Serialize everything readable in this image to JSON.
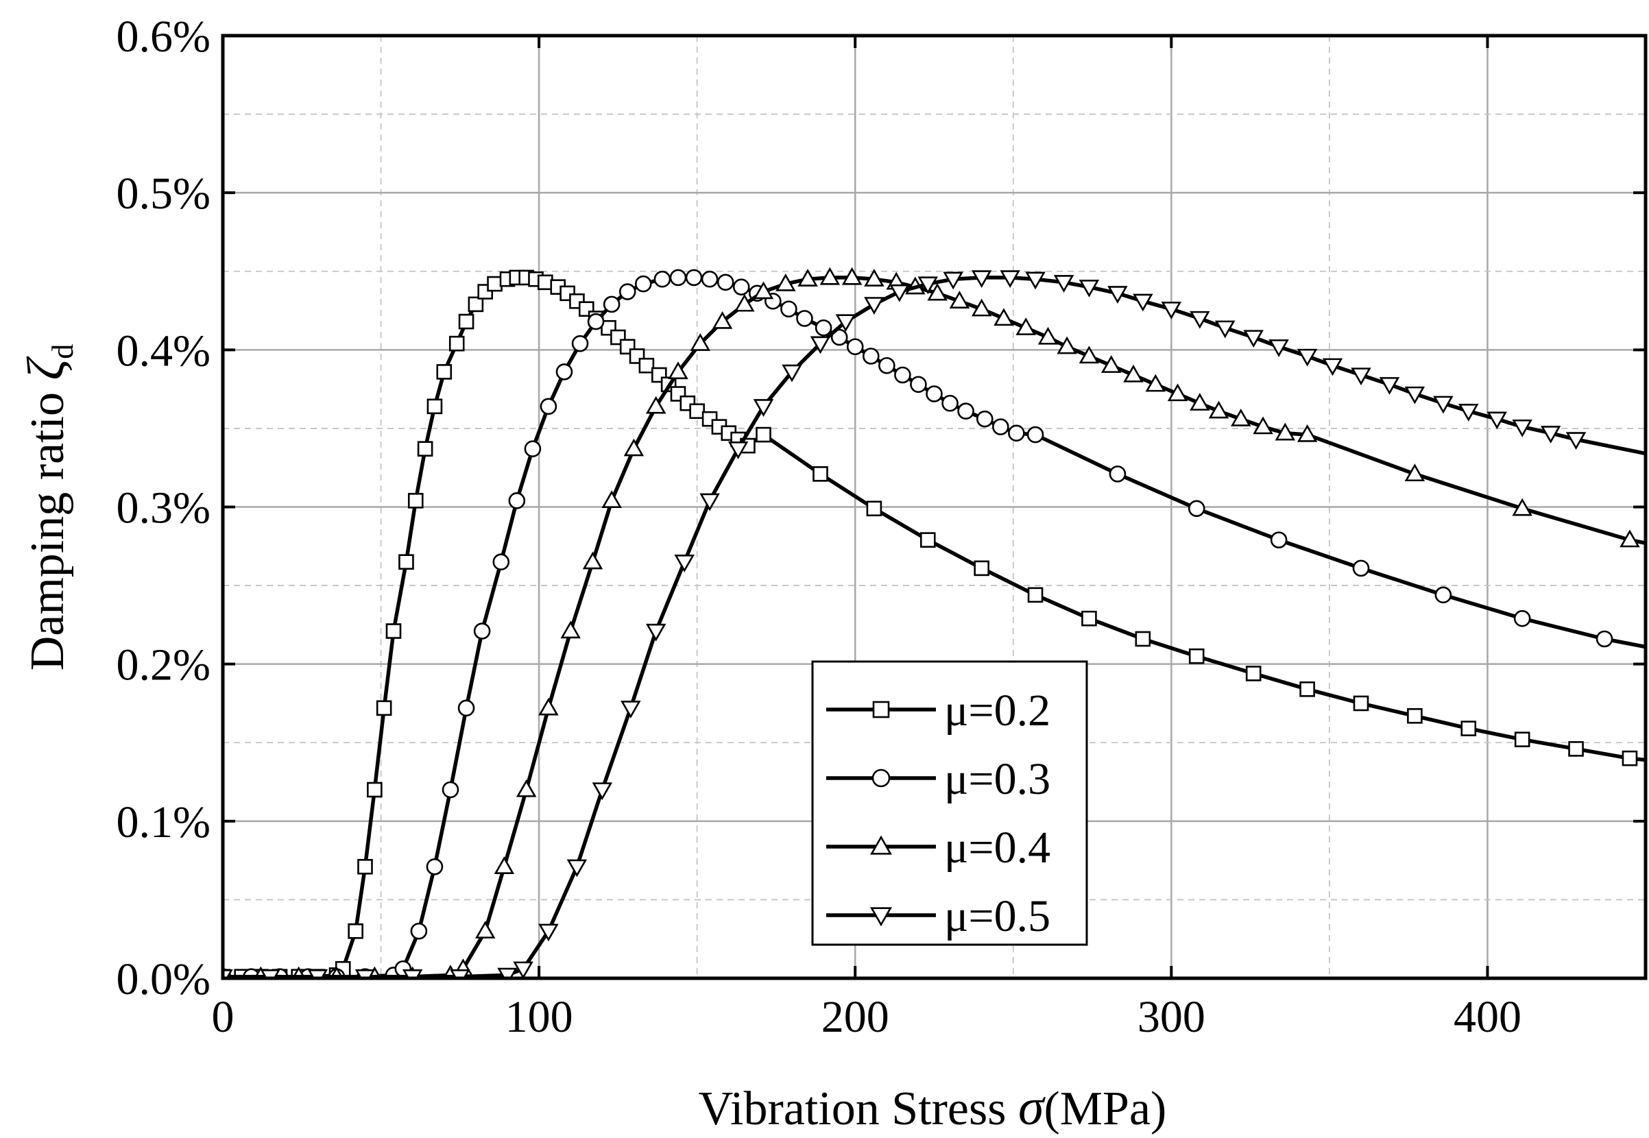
{
  "chart_data": {
    "type": "line",
    "title": "",
    "xlabel_prefix": "Vibration Stress ",
    "xlabel_symbol": "σ",
    "xlabel_suffix": "(MPa)",
    "ylabel_prefix": "Damping ratio ",
    "ylabel_symbol": "ζ",
    "ylabel_subscript": "d",
    "xlim": [
      0,
      450
    ],
    "ylim": [
      0,
      0.6
    ],
    "x_ticks": [
      0,
      100,
      200,
      300,
      400
    ],
    "x_tick_labels": [
      "0",
      "100",
      "200",
      "300",
      "400"
    ],
    "y_ticks": [
      0,
      0.1,
      0.2,
      0.3,
      0.4,
      0.5,
      0.6
    ],
    "y_tick_labels": [
      "0.0%",
      "0.1%",
      "0.2%",
      "0.3%",
      "0.4%",
      "0.5%",
      "0.6%"
    ],
    "grid": true,
    "legend_position": "bottom-center",
    "series": [
      {
        "name": "μ=0.2",
        "marker": "square",
        "x": [
          0,
          6,
          12,
          18,
          24,
          30,
          36,
          38,
          42,
          45,
          48,
          51,
          54,
          58,
          61,
          64,
          67,
          70,
          74,
          77,
          80,
          83,
          86,
          90,
          93,
          96,
          99,
          102,
          106,
          109,
          112,
          115,
          118,
          122,
          125,
          128,
          131,
          134,
          138,
          141,
          144,
          147,
          150,
          154,
          157,
          160,
          163,
          166,
          171,
          189,
          206,
          223,
          240,
          257,
          274,
          291,
          308,
          326,
          343,
          360,
          377,
          394,
          411,
          428,
          445
        ],
        "y": [
          0.001,
          0.001,
          0.001,
          0.001,
          0.001,
          0.001,
          0.002,
          0.006,
          0.03,
          0.071,
          0.12,
          0.172,
          0.221,
          0.265,
          0.304,
          0.337,
          0.364,
          0.386,
          0.404,
          0.418,
          0.429,
          0.437,
          0.442,
          0.445,
          0.446,
          0.446,
          0.445,
          0.443,
          0.44,
          0.436,
          0.431,
          0.426,
          0.42,
          0.414,
          0.408,
          0.402,
          0.396,
          0.39,
          0.384,
          0.378,
          0.372,
          0.366,
          0.361,
          0.356,
          0.351,
          0.347,
          0.343,
          0.339,
          0.346,
          0.321,
          0.299,
          0.279,
          0.261,
          0.244,
          0.229,
          0.216,
          0.205,
          0.194,
          0.184,
          0.175,
          0.167,
          0.159,
          0.152,
          0.146,
          0.14
        ]
      },
      {
        "name": "μ=0.3",
        "marker": "circle",
        "x": [
          0,
          9,
          18,
          27,
          36,
          45,
          54,
          57,
          62,
          67,
          72,
          77,
          82,
          88,
          93,
          98,
          103,
          108,
          113,
          118,
          123,
          128,
          133,
          139,
          144,
          149,
          154,
          159,
          164,
          169,
          174,
          179,
          184,
          190,
          195,
          200,
          205,
          210,
          215,
          220,
          225,
          230,
          235,
          241,
          246,
          251,
          257,
          283,
          308,
          334,
          360,
          386,
          411,
          437
        ],
        "y": [
          0.001,
          0.001,
          0.001,
          0.001,
          0.001,
          0.001,
          0.002,
          0.006,
          0.03,
          0.071,
          0.12,
          0.172,
          0.221,
          0.265,
          0.304,
          0.337,
          0.364,
          0.386,
          0.404,
          0.418,
          0.429,
          0.437,
          0.442,
          0.445,
          0.446,
          0.446,
          0.445,
          0.443,
          0.44,
          0.436,
          0.431,
          0.426,
          0.42,
          0.414,
          0.408,
          0.402,
          0.396,
          0.39,
          0.384,
          0.378,
          0.372,
          0.366,
          0.361,
          0.356,
          0.351,
          0.347,
          0.346,
          0.321,
          0.299,
          0.279,
          0.261,
          0.244,
          0.229,
          0.216
        ]
      },
      {
        "name": "μ=0.4",
        "marker": "triangle-up",
        "x": [
          0,
          12,
          24,
          36,
          48,
          60,
          72,
          76,
          83,
          89,
          96,
          103,
          110,
          117,
          123,
          130,
          137,
          144,
          151,
          158,
          165,
          171,
          178,
          185,
          192,
          199,
          206,
          213,
          219,
          226,
          233,
          240,
          247,
          254,
          261,
          267,
          274,
          281,
          288,
          295,
          302,
          309,
          315,
          322,
          329,
          336,
          343,
          377,
          411,
          445
        ],
        "y": [
          0.001,
          0.001,
          0.001,
          0.001,
          0.001,
          0.001,
          0.002,
          0.006,
          0.03,
          0.071,
          0.12,
          0.172,
          0.221,
          0.265,
          0.304,
          0.337,
          0.364,
          0.386,
          0.404,
          0.418,
          0.429,
          0.437,
          0.442,
          0.445,
          0.446,
          0.446,
          0.445,
          0.443,
          0.44,
          0.436,
          0.431,
          0.426,
          0.42,
          0.414,
          0.408,
          0.402,
          0.396,
          0.39,
          0.384,
          0.378,
          0.372,
          0.366,
          0.361,
          0.356,
          0.351,
          0.347,
          0.346,
          0.321,
          0.299,
          0.279
        ]
      },
      {
        "name": "μ=0.5",
        "marker": "triangle-down",
        "x": [
          0,
          15,
          30,
          45,
          60,
          75,
          90,
          95,
          103,
          112,
          120,
          129,
          137,
          146,
          154,
          163,
          171,
          180,
          189,
          197,
          206,
          214,
          223,
          231,
          240,
          249,
          257,
          266,
          274,
          283,
          291,
          300,
          309,
          317,
          326,
          334,
          343,
          351,
          360,
          369,
          377,
          386,
          394,
          403,
          411,
          420,
          428
        ],
        "y": [
          0.001,
          0.001,
          0.001,
          0.001,
          0.001,
          0.001,
          0.002,
          0.006,
          0.03,
          0.071,
          0.12,
          0.172,
          0.221,
          0.265,
          0.304,
          0.337,
          0.364,
          0.386,
          0.404,
          0.418,
          0.429,
          0.437,
          0.442,
          0.445,
          0.446,
          0.446,
          0.445,
          0.443,
          0.44,
          0.436,
          0.431,
          0.426,
          0.42,
          0.414,
          0.408,
          0.402,
          0.396,
          0.39,
          0.384,
          0.378,
          0.372,
          0.366,
          0.361,
          0.356,
          0.351,
          0.347,
          0.343
        ]
      }
    ],
    "line_extensions": [
      {
        "series": "μ=0.2",
        "x": [
          450
        ],
        "y": [
          0.139
        ]
      },
      {
        "series": "μ=0.3",
        "x": [
          450
        ],
        "y": [
          0.211
        ]
      },
      {
        "series": "μ=0.4",
        "x": [
          450
        ],
        "y": [
          0.277
        ]
      },
      {
        "series": "μ=0.5",
        "x": [
          450
        ],
        "y": [
          0.334
        ]
      }
    ]
  }
}
